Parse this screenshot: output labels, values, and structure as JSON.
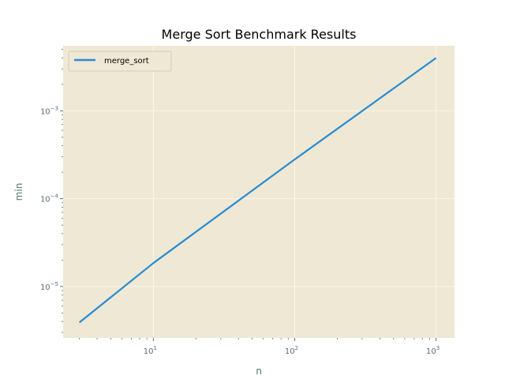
{
  "chart_data": {
    "type": "line",
    "title": "Merge Sort Benchmark Results",
    "xlabel": "n",
    "ylabel": "min",
    "xscale": "log",
    "yscale": "log",
    "xlim": [
      2.3,
      1350
    ],
    "ylim": [
      2.6e-06,
      0.0055
    ],
    "x_ticks": [
      {
        "value": 10,
        "label": "10",
        "exp": "1"
      },
      {
        "value": 100,
        "label": "10",
        "exp": "2"
      },
      {
        "value": 1000,
        "label": "10",
        "exp": "3"
      }
    ],
    "y_ticks": [
      {
        "value": 1e-05,
        "label": "10",
        "exp": "−5"
      },
      {
        "value": 0.0001,
        "label": "10",
        "exp": "−4"
      },
      {
        "value": 0.001,
        "label": "10",
        "exp": "−3"
      }
    ],
    "grid": true,
    "legend_position": "upper-left",
    "series": [
      {
        "name": "merge_sort",
        "color": "#268bd2",
        "x": [
          3,
          10,
          100,
          1000
        ],
        "y": [
          3.9e-06,
          1.85e-05,
          0.00028,
          0.004
        ]
      }
    ],
    "colors": {
      "plot_background": "#eee8d5",
      "grid": "#fdf6e3",
      "text": "#586e75"
    }
  }
}
